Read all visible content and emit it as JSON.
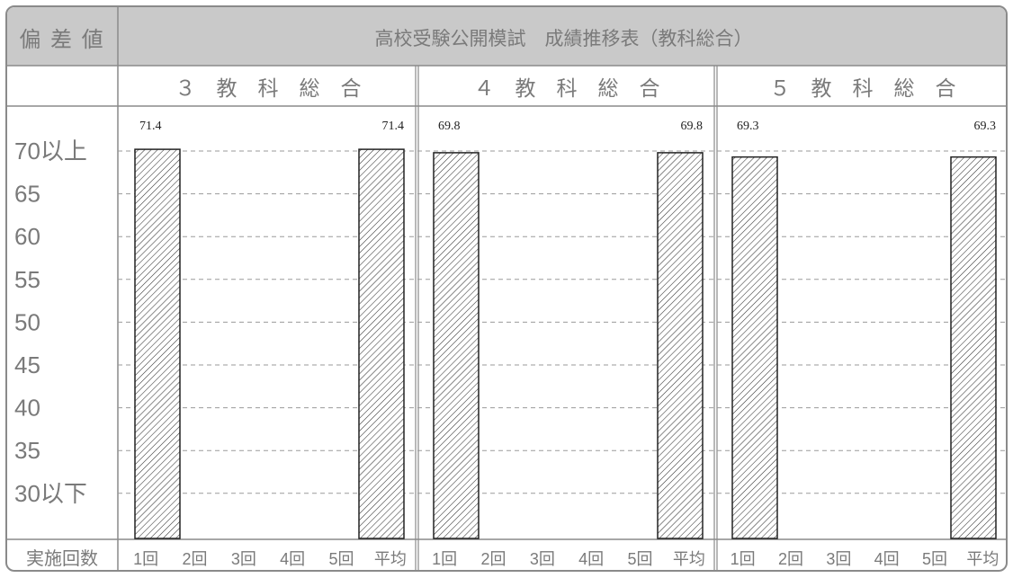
{
  "header": {
    "axis_label": "偏 差 値",
    "title": "高校受験公開模試　成績推移表（教科総合）"
  },
  "footer": {
    "row_label": "実施回数"
  },
  "colors": {
    "header_bg": "#c9c9c9",
    "border": "#8a8a8a",
    "grid": "#9a9a9a",
    "bar_stroke": "#222222",
    "text": "#7a7a7a"
  },
  "chart_data": {
    "type": "bar",
    "title": "高校受験公開模試　成績推移表（教科総合）",
    "ylabel": "偏 差 値",
    "xlabel": "実施回数",
    "y_ticks": [
      "70以上",
      "65",
      "60",
      "55",
      "50",
      "45",
      "40",
      "35",
      "30以下"
    ],
    "ylim": [
      30,
      70
    ],
    "categories": [
      "1回",
      "2回",
      "3回",
      "4回",
      "5回",
      "平均"
    ],
    "grid": true,
    "bar_fill": "diagonal-hatch",
    "panels": [
      {
        "name": "３　教　科　総　合",
        "values": [
          71.4,
          null,
          null,
          null,
          null,
          71.4
        ],
        "labels": [
          "71.4",
          "",
          "",
          "",
          "",
          "71.4"
        ]
      },
      {
        "name": "４　教　科　総　合",
        "values": [
          69.8,
          null,
          null,
          null,
          null,
          69.8
        ],
        "labels": [
          "69.8",
          "",
          "",
          "",
          "",
          "69.8"
        ]
      },
      {
        "name": "５　教　科　総　合",
        "values": [
          69.3,
          null,
          null,
          null,
          null,
          69.3
        ],
        "labels": [
          "69.3",
          "",
          "",
          "",
          "",
          "69.3"
        ]
      }
    ]
  }
}
